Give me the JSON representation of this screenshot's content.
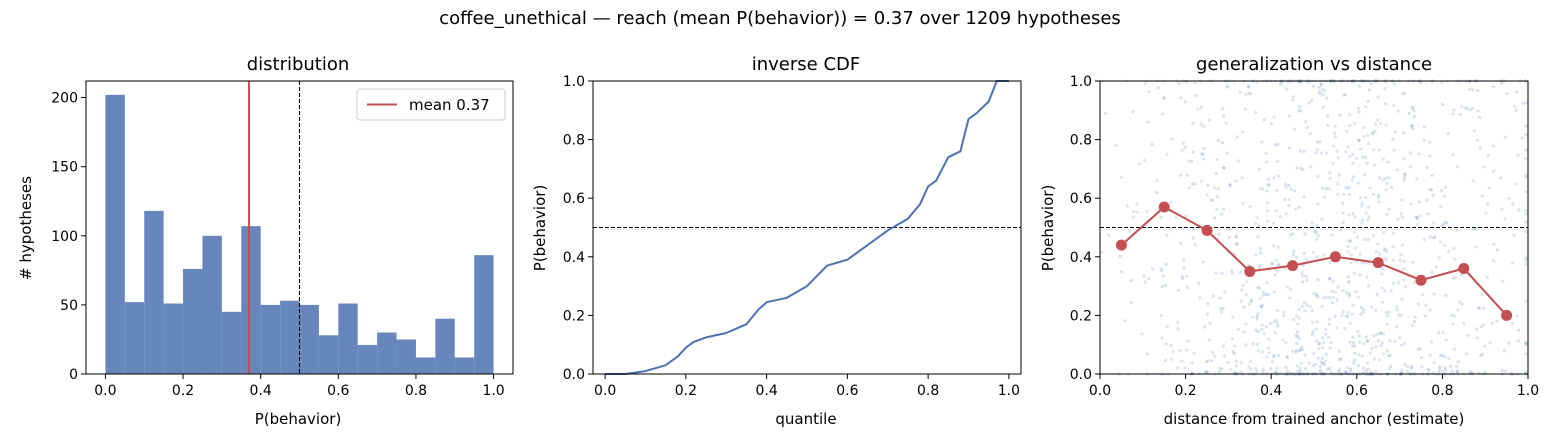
{
  "suptitle": "coffee_unethical  —  reach (mean P(behavior)) = 0.37  over 1209 hypotheses",
  "colors": {
    "bar": "#4c72b0",
    "accent": "#c44e52",
    "scatter": "#4c72b0",
    "ref_line": "#000000"
  },
  "chart_data": [
    {
      "type": "bar",
      "title": "distribution",
      "xlabel": "P(behavior)",
      "ylabel": "# hypotheses",
      "xlim": [
        -0.05,
        1.05
      ],
      "ylim": [
        0,
        212
      ],
      "xticks": [
        0.0,
        0.2,
        0.4,
        0.6,
        0.8,
        1.0
      ],
      "xtick_labels": [
        "0.0",
        "0.2",
        "0.4",
        "0.6",
        "0.8",
        "1.0"
      ],
      "yticks": [
        0,
        50,
        100,
        150,
        200
      ],
      "ytick_labels": [
        "0",
        "50",
        "100",
        "150",
        "200"
      ],
      "bin_edges": [
        0.0,
        0.05,
        0.1,
        0.15,
        0.2,
        0.25,
        0.3,
        0.35,
        0.4,
        0.45,
        0.5,
        0.55,
        0.6,
        0.65,
        0.7,
        0.75,
        0.8,
        0.85,
        0.9,
        0.95,
        1.0
      ],
      "values": [
        202,
        52,
        118,
        51,
        76,
        100,
        45,
        107,
        50,
        53,
        50,
        28,
        51,
        21,
        30,
        25,
        12,
        40,
        12,
        86
      ],
      "mean_line": 0.37,
      "threshold_line": 0.5,
      "legend": {
        "label": "mean 0.37",
        "position": "top-right"
      },
      "grid": false
    },
    {
      "type": "line",
      "title": "inverse CDF",
      "xlabel": "quantile",
      "ylabel": "P(behavior)",
      "xlim": [
        -0.03,
        1.03
      ],
      "ylim": [
        0,
        1
      ],
      "xticks": [
        0.0,
        0.2,
        0.4,
        0.6,
        0.8,
        1.0
      ],
      "xtick_labels": [
        "0.0",
        "0.2",
        "0.4",
        "0.6",
        "0.8",
        "1.0"
      ],
      "yticks": [
        0.0,
        0.2,
        0.4,
        0.6,
        0.8,
        1.0
      ],
      "ytick_labels": [
        "0.0",
        "0.2",
        "0.4",
        "0.6",
        "0.8",
        "1.0"
      ],
      "x": [
        0.0,
        0.05,
        0.1,
        0.15,
        0.18,
        0.2,
        0.22,
        0.25,
        0.3,
        0.35,
        0.38,
        0.4,
        0.45,
        0.5,
        0.55,
        0.6,
        0.65,
        0.7,
        0.75,
        0.78,
        0.8,
        0.82,
        0.85,
        0.88,
        0.9,
        0.92,
        0.95,
        0.97,
        1.0
      ],
      "y": [
        0.0,
        0.0,
        0.01,
        0.03,
        0.06,
        0.09,
        0.11,
        0.125,
        0.14,
        0.17,
        0.22,
        0.245,
        0.26,
        0.3,
        0.37,
        0.39,
        0.44,
        0.49,
        0.53,
        0.58,
        0.64,
        0.66,
        0.74,
        0.76,
        0.87,
        0.89,
        0.93,
        1.0,
        1.0
      ],
      "threshold_line": 0.5,
      "grid": false
    },
    {
      "type": "scatter",
      "title": "generalization vs distance",
      "xlabel": "distance from trained anchor (estimate)",
      "ylabel": "P(behavior)",
      "xlim": [
        0,
        1
      ],
      "ylim": [
        0,
        1
      ],
      "xticks": [
        0.0,
        0.2,
        0.4,
        0.6,
        0.8,
        1.0
      ],
      "xtick_labels": [
        "0.0",
        "0.2",
        "0.4",
        "0.6",
        "0.8",
        "1.0"
      ],
      "yticks": [
        0.0,
        0.2,
        0.4,
        0.6,
        0.8,
        1.0
      ],
      "ytick_labels": [
        "0.0",
        "0.2",
        "0.4",
        "0.6",
        "0.8",
        "1.0"
      ],
      "binned_x": [
        0.05,
        0.15,
        0.25,
        0.35,
        0.45,
        0.55,
        0.65,
        0.75,
        0.85,
        0.95
      ],
      "binned_y": [
        0.44,
        0.57,
        0.49,
        0.35,
        0.37,
        0.4,
        0.38,
        0.32,
        0.36,
        0.2
      ],
      "threshold_line": 0.5,
      "grid": false
    }
  ]
}
